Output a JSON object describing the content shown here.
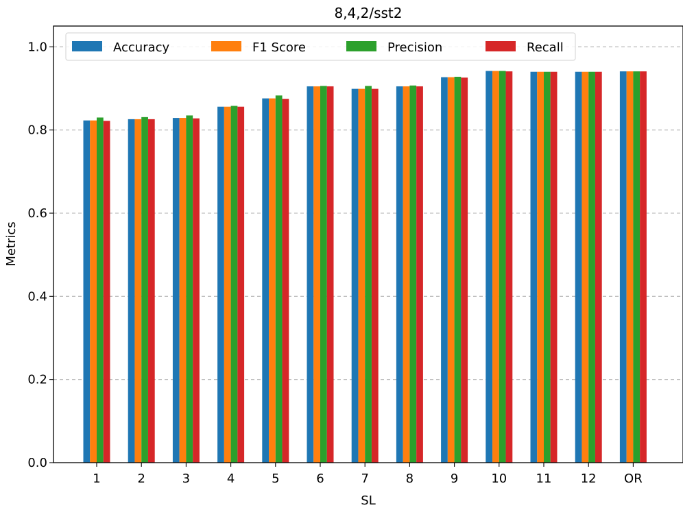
{
  "chart_data": {
    "type": "bar",
    "title": "8,4,2/sst2",
    "xlabel": "SL",
    "ylabel": "Metrics",
    "ylim": [
      0,
      1.05
    ],
    "yticks": [
      "0.0",
      "0.2",
      "0.4",
      "0.6",
      "0.8",
      "1.0"
    ],
    "categories": [
      "1",
      "2",
      "3",
      "4",
      "5",
      "6",
      "7",
      "8",
      "9",
      "10",
      "11",
      "12",
      "OR"
    ],
    "grid": "y-dashed",
    "legend_placement": "top-left",
    "series": [
      {
        "name": "Accuracy",
        "color": "#1f77b4",
        "values": [
          0.823,
          0.826,
          0.829,
          0.856,
          0.876,
          0.905,
          0.899,
          0.905,
          0.927,
          0.942,
          0.94,
          0.94,
          0.941
        ]
      },
      {
        "name": "F1 Score",
        "color": "#ff7f0e",
        "values": [
          0.823,
          0.826,
          0.829,
          0.856,
          0.876,
          0.905,
          0.899,
          0.905,
          0.927,
          0.942,
          0.94,
          0.94,
          0.941
        ]
      },
      {
        "name": "Precision",
        "color": "#2ca02c",
        "values": [
          0.83,
          0.831,
          0.835,
          0.858,
          0.883,
          0.906,
          0.906,
          0.907,
          0.928,
          0.942,
          0.94,
          0.94,
          0.941
        ]
      },
      {
        "name": "Recall",
        "color": "#d62728",
        "values": [
          0.822,
          0.826,
          0.828,
          0.856,
          0.875,
          0.905,
          0.899,
          0.905,
          0.926,
          0.941,
          0.94,
          0.94,
          0.941
        ]
      }
    ]
  }
}
